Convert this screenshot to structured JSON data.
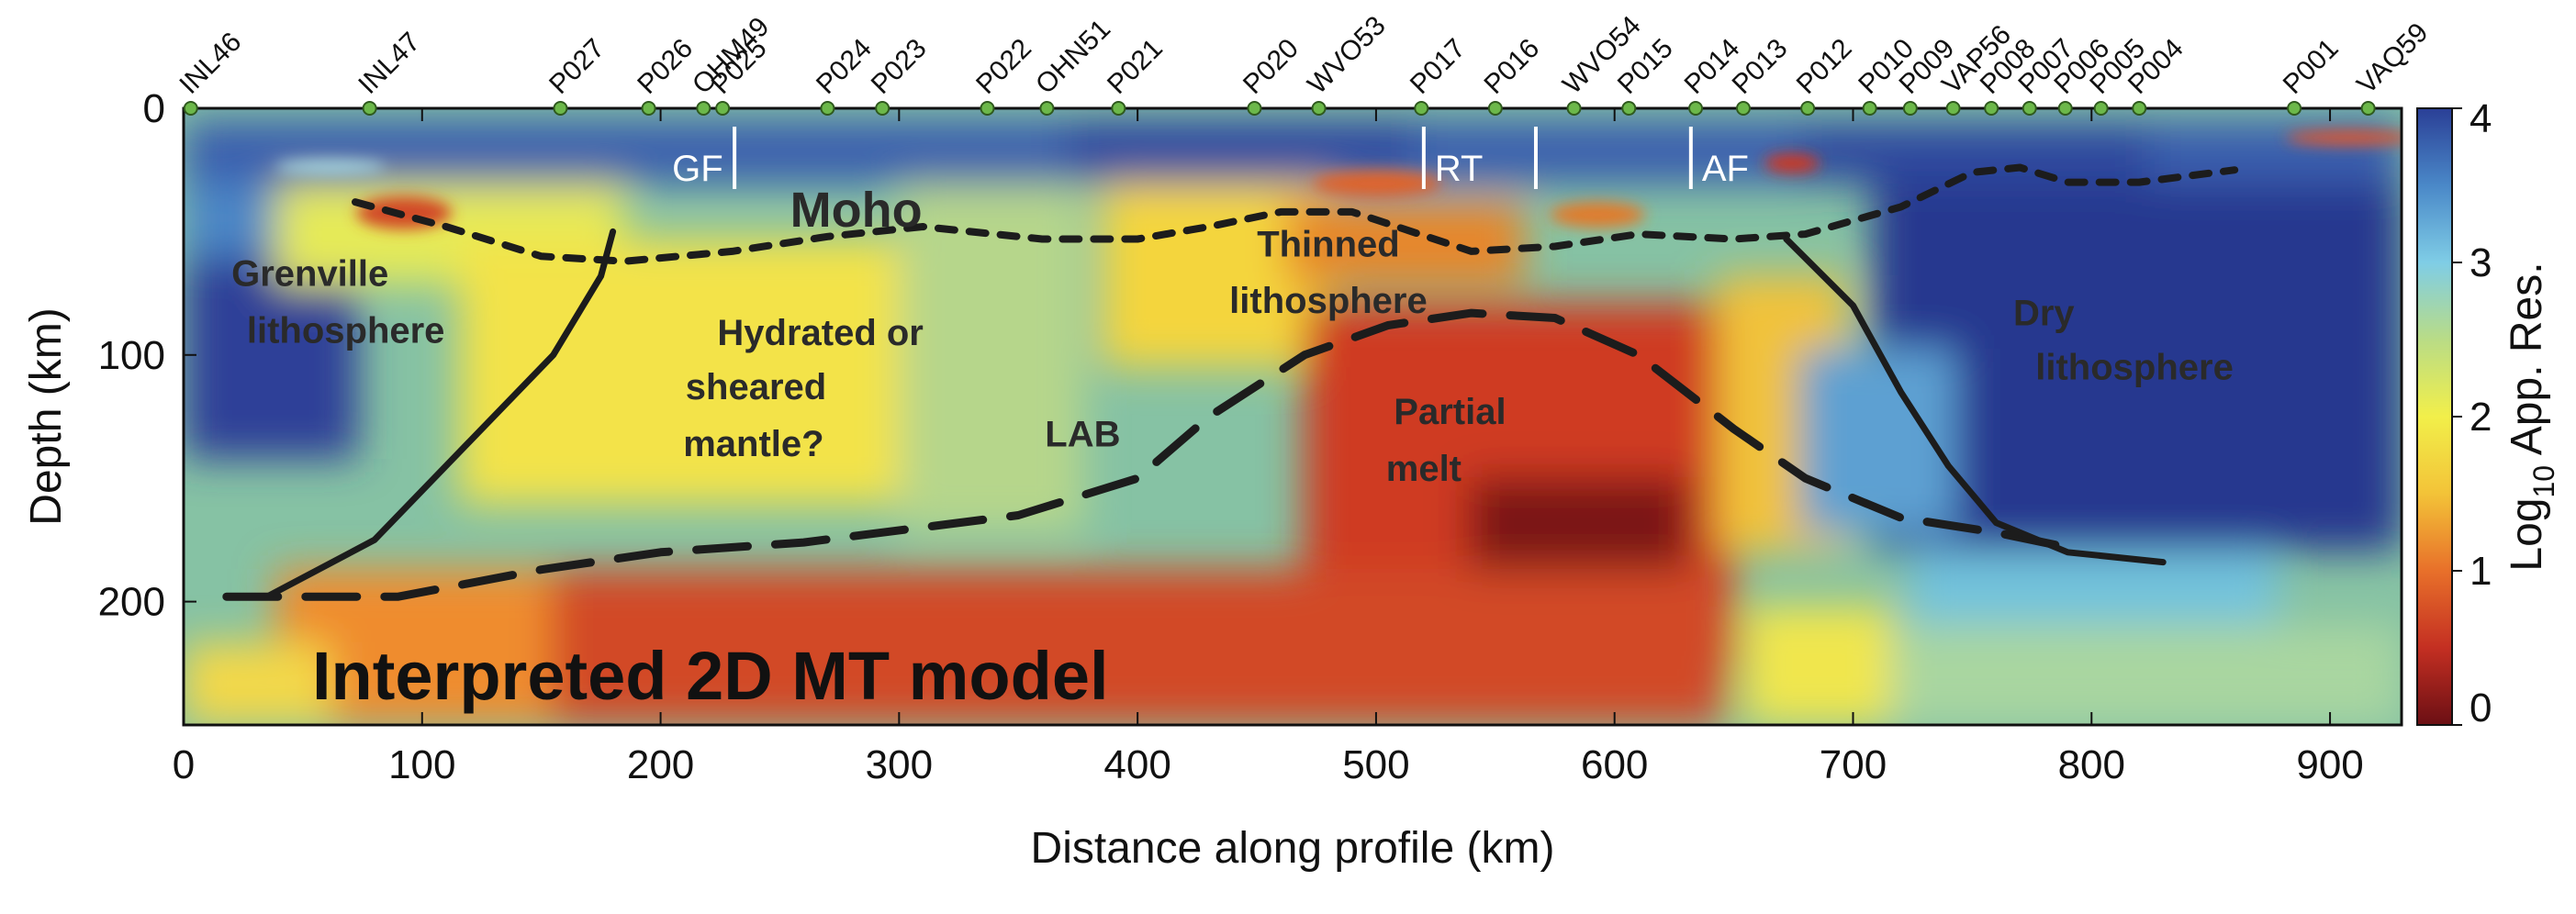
{
  "chart_data": {
    "type": "heatmap",
    "title": "Interpreted 2D MT model",
    "xlabel": "Distance along profile (km)",
    "ylabel": "Depth (km)",
    "xlim": [
      0,
      930
    ],
    "ylim": [
      0,
      250
    ],
    "y_reversed": true,
    "x_ticks": [
      0,
      100,
      200,
      300,
      400,
      500,
      600,
      700,
      800,
      900
    ],
    "y_ticks": [
      0,
      100,
      200
    ],
    "colorbar": {
      "label_main": "Log",
      "label_sub": "10",
      "label_rest": " App. Res.",
      "ticks": [
        0,
        1,
        2,
        3,
        4
      ],
      "range": [
        0,
        4
      ],
      "colors": [
        "#6b0f14",
        "#c42f22",
        "#e8702a",
        "#f3c338",
        "#f2ef4a",
        "#b9dc86",
        "#7fcde6",
        "#4a88c8",
        "#2a3f96"
      ]
    },
    "stations": [
      {
        "name": "INL46",
        "x": 3
      },
      {
        "name": "INL47",
        "x": 78
      },
      {
        "name": "P027",
        "x": 158
      },
      {
        "name": "P026",
        "x": 195
      },
      {
        "name": "OHM49",
        "x": 218
      },
      {
        "name": "P025",
        "x": 226
      },
      {
        "name": "P024",
        "x": 270
      },
      {
        "name": "P023",
        "x": 293
      },
      {
        "name": "P022",
        "x": 337
      },
      {
        "name": "OHN51",
        "x": 362
      },
      {
        "name": "P021",
        "x": 392
      },
      {
        "name": "P020",
        "x": 449
      },
      {
        "name": "WVO53",
        "x": 476
      },
      {
        "name": "P017",
        "x": 519
      },
      {
        "name": "P016",
        "x": 550
      },
      {
        "name": "WVO54",
        "x": 583
      },
      {
        "name": "P015",
        "x": 606
      },
      {
        "name": "P014",
        "x": 634
      },
      {
        "name": "P013",
        "x": 654
      },
      {
        "name": "P012",
        "x": 681
      },
      {
        "name": "P010",
        "x": 707
      },
      {
        "name": "P009",
        "x": 724
      },
      {
        "name": "VAP56",
        "x": 742
      },
      {
        "name": "P008",
        "x": 758
      },
      {
        "name": "P007",
        "x": 774
      },
      {
        "name": "P006",
        "x": 789
      },
      {
        "name": "P005",
        "x": 804
      },
      {
        "name": "P004",
        "x": 820
      },
      {
        "name": "P001",
        "x": 885
      },
      {
        "name": "VAQ59",
        "x": 916
      }
    ],
    "faults": [
      {
        "name": "GF",
        "x": 231
      },
      {
        "name": "RT",
        "x": 520
      },
      {
        "name": "AF",
        "x": 632
      }
    ],
    "fault_extra_ticks": [
      567
    ],
    "moho": [
      [
        72,
        38
      ],
      [
        110,
        48
      ],
      [
        150,
        60
      ],
      [
        185,
        62
      ],
      [
        230,
        58
      ],
      [
        270,
        52
      ],
      [
        310,
        48
      ],
      [
        360,
        53
      ],
      [
        400,
        53
      ],
      [
        430,
        48
      ],
      [
        460,
        42
      ],
      [
        490,
        42
      ],
      [
        515,
        50
      ],
      [
        540,
        58
      ],
      [
        575,
        56
      ],
      [
        610,
        51
      ],
      [
        650,
        53
      ],
      [
        680,
        51
      ],
      [
        720,
        40
      ],
      [
        750,
        26
      ],
      [
        770,
        24
      ],
      [
        790,
        30
      ],
      [
        820,
        30
      ],
      [
        860,
        25
      ]
    ],
    "lab": [
      [
        18,
        198
      ],
      [
        90,
        198
      ],
      [
        150,
        187
      ],
      [
        200,
        180
      ],
      [
        260,
        176
      ],
      [
        350,
        165
      ],
      [
        400,
        150
      ],
      [
        430,
        125
      ],
      [
        470,
        100
      ],
      [
        505,
        88
      ],
      [
        540,
        83
      ],
      [
        575,
        85
      ],
      [
        610,
        100
      ],
      [
        650,
        130
      ],
      [
        680,
        150
      ],
      [
        720,
        166
      ],
      [
        760,
        172
      ],
      [
        790,
        178
      ]
    ],
    "west_boundary": [
      [
        35,
        198
      ],
      [
        80,
        175
      ],
      [
        120,
        135
      ],
      [
        155,
        100
      ],
      [
        175,
        68
      ],
      [
        180,
        50
      ]
    ],
    "east_boundary": [
      [
        672,
        53
      ],
      [
        700,
        80
      ],
      [
        720,
        115
      ],
      [
        740,
        145
      ],
      [
        760,
        168
      ],
      [
        790,
        180
      ],
      [
        830,
        184
      ]
    ],
    "annotations": [
      {
        "id": "moho",
        "text": "Moho",
        "x": 282,
        "y": 48,
        "size": 54
      },
      {
        "id": "grenville-1",
        "text": "Grenville",
        "x": 53,
        "y": 72,
        "size": 40
      },
      {
        "id": "grenville-2",
        "text": "lithosphere",
        "x": 68,
        "y": 95,
        "size": 40
      },
      {
        "id": "hydrated-1",
        "text": "Hydrated or",
        "x": 267,
        "y": 96,
        "size": 40
      },
      {
        "id": "hydrated-2",
        "text": "sheared",
        "x": 240,
        "y": 118,
        "size": 40
      },
      {
        "id": "hydrated-3",
        "text": "mantle?",
        "x": 239,
        "y": 141,
        "size": 40
      },
      {
        "id": "thinned-1",
        "text": "Thinned",
        "x": 480,
        "y": 60,
        "size": 40
      },
      {
        "id": "thinned-2",
        "text": "lithosphere",
        "x": 480,
        "y": 83,
        "size": 40
      },
      {
        "id": "lab",
        "text": "LAB",
        "x": 377,
        "y": 137,
        "size": 40
      },
      {
        "id": "partial-1",
        "text": "Partial",
        "x": 531,
        "y": 128,
        "size": 40
      },
      {
        "id": "partial-2",
        "text": "melt",
        "x": 520,
        "y": 151,
        "size": 40
      },
      {
        "id": "dry-1",
        "text": "Dry",
        "x": 780,
        "y": 88,
        "size": 40
      },
      {
        "id": "dry-2",
        "text": "lithosphere",
        "x": 818,
        "y": 110,
        "size": 40
      }
    ]
  }
}
